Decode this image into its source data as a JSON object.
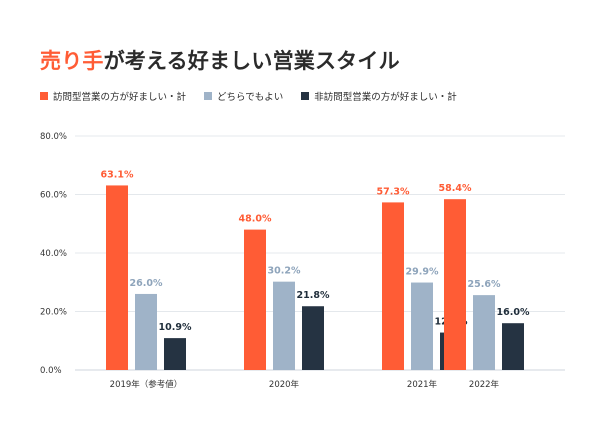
{
  "title": {
    "accent_text": "売り手",
    "rest_text": "が考える好ましい営業スタイル"
  },
  "legend": [
    {
      "label": "訪問型営業の方が好ましい・計",
      "color": "#ff5c35"
    },
    {
      "label": "どちらでもよい",
      "color": "#9fb3c8"
    },
    {
      "label": "非訪問型営業の方が好ましい・計",
      "color": "#253342"
    }
  ],
  "chart_data": {
    "type": "bar",
    "categories": [
      "2019年（参考値）",
      "2020年",
      "2021年",
      "2022年"
    ],
    "series": [
      {
        "name": "訪問型営業の方が好ましい・計",
        "color": "#ff5c35",
        "label_color": "#ff5c35",
        "values": [
          63.1,
          48.0,
          57.3,
          58.4
        ]
      },
      {
        "name": "どちらでもよい",
        "color": "#9fb3c8",
        "label_color": "#8ea4bb",
        "values": [
          26.0,
          30.2,
          29.9,
          25.6
        ]
      },
      {
        "name": "非訪問型営業の方が好ましい・計",
        "color": "#253342",
        "label_color": "#1f2d3a",
        "values": [
          10.9,
          21.8,
          12.8,
          16.0
        ]
      }
    ],
    "yticks": [
      "0.0%",
      "20.0%",
      "40.0%",
      "60.0%",
      "80.0%"
    ],
    "ylim": [
      0,
      80
    ],
    "grid": true,
    "legend_position": "top-left"
  }
}
